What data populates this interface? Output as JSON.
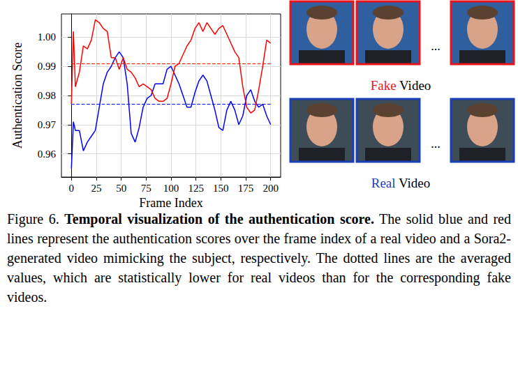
{
  "chart_data": {
    "type": "line",
    "xlabel": "Frame Index",
    "ylabel": "Authentication Score",
    "x": [
      0,
      2,
      4,
      8,
      12,
      16,
      20,
      24,
      28,
      32,
      36,
      40,
      44,
      48,
      52,
      56,
      60,
      64,
      68,
      72,
      76,
      80,
      84,
      88,
      92,
      96,
      100,
      104,
      108,
      112,
      116,
      120,
      124,
      128,
      132,
      136,
      140,
      144,
      148,
      152,
      156,
      160,
      164,
      168,
      172,
      176,
      180,
      184,
      188,
      192,
      196,
      200
    ],
    "series": [
      {
        "color": "#0000ff",
        "line_style": "solid",
        "mean": 0.977,
        "values": [
          0.955,
          0.971,
          0.968,
          0.968,
          0.961,
          0.964,
          0.966,
          0.968,
          0.976,
          0.984,
          0.988,
          0.99,
          0.993,
          0.995,
          0.993,
          0.984,
          0.967,
          0.964,
          0.969,
          0.976,
          0.979,
          0.98,
          0.984,
          0.984,
          0.984,
          0.989,
          0.99,
          0.987,
          0.984,
          0.98,
          0.976,
          0.976,
          0.981,
          0.985,
          0.987,
          0.985,
          0.98,
          0.975,
          0.969,
          0.968,
          0.975,
          0.978,
          0.975,
          0.97,
          0.973,
          0.98,
          0.982,
          0.978,
          0.976,
          0.977,
          0.973,
          0.97
        ]
      },
      {
        "color": "#ff0000",
        "line_style": "solid",
        "mean": 0.991,
        "values": [
          0.977,
          1.002,
          0.983,
          0.988,
          0.997,
          0.996,
          0.999,
          1.006,
          1.005,
          1.003,
          1.002,
          0.993,
          0.993,
          0.989,
          0.993,
          0.989,
          0.988,
          0.986,
          0.983,
          0.984,
          0.983,
          0.982,
          0.979,
          0.978,
          0.978,
          0.979,
          0.984,
          0.99,
          0.991,
          0.994,
          0.997,
          0.999,
          1.003,
          1.005,
          1.002,
          1.005,
          1.003,
          1.001,
          1.003,
          1.004,
          1.001,
          0.998,
          0.995,
          0.993,
          0.983,
          0.976,
          0.974,
          0.975,
          0.982,
          0.99,
          0.999,
          0.998
        ]
      }
    ],
    "xlim": [
      -10,
      210
    ],
    "xticks": [
      0,
      25,
      50,
      75,
      100,
      125,
      150,
      175,
      200
    ],
    "ylim": [
      0.952,
      1.008
    ],
    "yticks": [
      0.96,
      0.97,
      0.98,
      0.99,
      {
        "value": 1,
        "label": "1.00"
      }
    ],
    "grid": true
  },
  "frames": [
    {
      "color": "#e8141c",
      "label": [
        {
          "text": "Fake",
          "color": "#e8141c"
        },
        {
          "text": " Video",
          "color": "#000000"
        }
      ],
      "gap_text": "..."
    },
    {
      "color": "#1a3fb4",
      "label": [
        {
          "text": "Real",
          "color": "#1a3fb4"
        },
        {
          "text": " Video",
          "color": "#000000"
        }
      ],
      "gap_text": "..."
    }
  ],
  "caption": {
    "label": "Figure 6.",
    "title": "Temporal visualization of the authentication score.",
    "text": "The solid blue and red lines represent the authentication scores over the frame index of a real video and a Sora2-generated video mimicking the subject, respectively. The dotted lines are the averaged values, which are statistically lower for real videos than for the corresponding fake videos."
  }
}
